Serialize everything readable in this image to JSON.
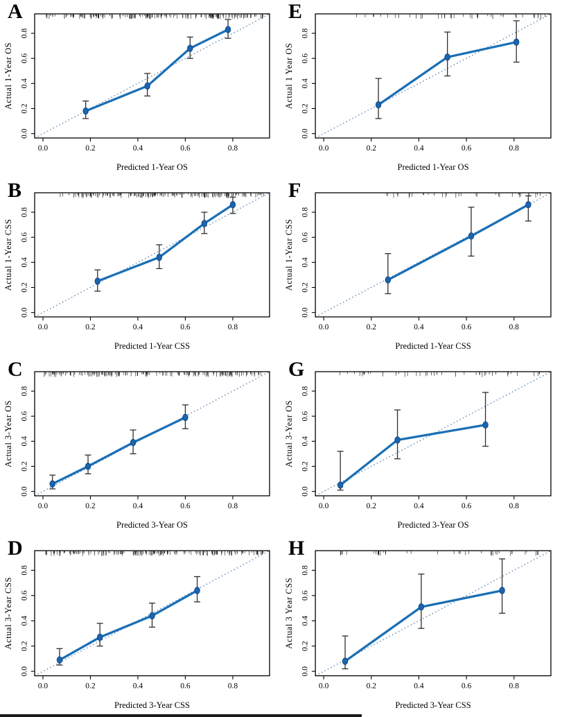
{
  "figure": {
    "description": "Calibration curves of nomograms, panels A-H",
    "panel_letters": [
      "A",
      "B",
      "C",
      "D",
      "E",
      "F",
      "G",
      "H"
    ]
  },
  "style": {
    "line_color": "#1a6fb5",
    "point_fill": "#1d63ad",
    "point_stroke": "#0f4c8c",
    "diagonal_color": "#5b84b8",
    "errorbar_color": "#2f2f2f",
    "axis_color": "#000000",
    "background": "#ffffff"
  },
  "chart_data": [
    {
      "label": "A",
      "type": "line",
      "xlabel": "Predicted 1-Year OS",
      "ylabel": "Actual 1-Year OS",
      "xticks": [
        0.0,
        0.2,
        0.4,
        0.6,
        0.8
      ],
      "yticks": [
        0.0,
        0.2,
        0.4,
        0.6,
        0.8
      ],
      "xlim": [
        -0.035,
        0.955
      ],
      "ylim": [
        -0.035,
        0.955
      ],
      "diagonal": true,
      "grid": false,
      "legend": "none",
      "points": {
        "x": [
          0.18,
          0.44,
          0.62,
          0.78
        ],
        "y": [
          0.18,
          0.38,
          0.68,
          0.83
        ],
        "ci_low": [
          0.12,
          0.3,
          0.6,
          0.76
        ],
        "ci_high": [
          0.26,
          0.48,
          0.77,
          0.91
        ]
      },
      "rug": {
        "span": [
          0.01,
          0.935
        ],
        "count": 175,
        "seed": 11
      }
    },
    {
      "label": "B",
      "type": "line",
      "xlabel": "Predicted 1-Year CSS",
      "ylabel": "Actual 1-Year CSS",
      "xticks": [
        0.0,
        0.2,
        0.4,
        0.6,
        0.8
      ],
      "yticks": [
        0.0,
        0.2,
        0.4,
        0.6,
        0.8
      ],
      "xlim": [
        -0.035,
        0.955
      ],
      "ylim": [
        -0.035,
        0.955
      ],
      "diagonal": true,
      "grid": false,
      "legend": "none",
      "points": {
        "x": [
          0.23,
          0.49,
          0.68,
          0.8
        ],
        "y": [
          0.25,
          0.44,
          0.71,
          0.86
        ],
        "ci_low": [
          0.17,
          0.35,
          0.63,
          0.79
        ],
        "ci_high": [
          0.34,
          0.54,
          0.8,
          0.92
        ]
      },
      "rug": {
        "span": [
          0.07,
          0.935
        ],
        "count": 165,
        "seed": 23
      }
    },
    {
      "label": "C",
      "type": "line",
      "xlabel": "Predicted 3-Year OS",
      "ylabel": "Actual 3-Year OS",
      "xticks": [
        0.0,
        0.2,
        0.4,
        0.6,
        0.8
      ],
      "yticks": [
        0.0,
        0.2,
        0.4,
        0.6,
        0.8
      ],
      "xlim": [
        -0.035,
        0.955
      ],
      "ylim": [
        -0.035,
        0.955
      ],
      "diagonal": true,
      "grid": false,
      "legend": "none",
      "points": {
        "x": [
          0.04,
          0.19,
          0.38,
          0.6
        ],
        "y": [
          0.06,
          0.2,
          0.39,
          0.59
        ],
        "ci_low": [
          0.02,
          0.14,
          0.3,
          0.5
        ],
        "ci_high": [
          0.13,
          0.29,
          0.49,
          0.69
        ]
      },
      "rug": {
        "span": [
          0.005,
          0.92
        ],
        "count": 170,
        "seed": 37
      }
    },
    {
      "label": "D",
      "type": "line",
      "xlabel": "Predicted 3-Year CSS",
      "ylabel": "Actual 3-Year CSS",
      "xticks": [
        0.0,
        0.2,
        0.4,
        0.6,
        0.8
      ],
      "yticks": [
        0.0,
        0.2,
        0.4,
        0.6,
        0.8
      ],
      "xlim": [
        -0.035,
        0.955
      ],
      "ylim": [
        -0.035,
        0.955
      ],
      "diagonal": true,
      "grid": false,
      "legend": "none",
      "points": {
        "x": [
          0.07,
          0.24,
          0.46,
          0.65
        ],
        "y": [
          0.09,
          0.27,
          0.44,
          0.64
        ],
        "ci_low": [
          0.05,
          0.2,
          0.35,
          0.55
        ],
        "ci_high": [
          0.18,
          0.38,
          0.54,
          0.75
        ]
      },
      "rug": {
        "span": [
          0.01,
          0.93
        ],
        "count": 170,
        "seed": 49
      }
    },
    {
      "label": "E",
      "type": "line",
      "xlabel": "Predicted 1-Year OS",
      "ylabel": "Actual 1 Year OS",
      "xticks": [
        0.0,
        0.2,
        0.4,
        0.6,
        0.8
      ],
      "yticks": [
        0.0,
        0.2,
        0.4,
        0.6,
        0.8
      ],
      "xlim": [
        -0.035,
        0.955
      ],
      "ylim": [
        -0.035,
        0.955
      ],
      "diagonal": true,
      "grid": false,
      "legend": "none",
      "points": {
        "x": [
          0.23,
          0.52,
          0.81
        ],
        "y": [
          0.23,
          0.61,
          0.73
        ],
        "ci_low": [
          0.12,
          0.46,
          0.57
        ],
        "ci_high": [
          0.44,
          0.81,
          0.9
        ]
      },
      "rug": {
        "span": [
          0.13,
          0.935
        ],
        "count": 42,
        "seed": 61
      }
    },
    {
      "label": "F",
      "type": "line",
      "xlabel": "Predicted 1-Year CSS",
      "ylabel": "Actual 1-Year CSS",
      "xticks": [
        0.0,
        0.2,
        0.4,
        0.6,
        0.8
      ],
      "yticks": [
        0.0,
        0.2,
        0.4,
        0.6,
        0.8
      ],
      "xlim": [
        -0.035,
        0.955
      ],
      "ylim": [
        -0.035,
        0.955
      ],
      "diagonal": true,
      "grid": false,
      "legend": "none",
      "points": {
        "x": [
          0.27,
          0.62,
          0.86
        ],
        "y": [
          0.26,
          0.61,
          0.86
        ],
        "ci_low": [
          0.15,
          0.45,
          0.73
        ],
        "ci_high": [
          0.47,
          0.84,
          0.93
        ]
      },
      "rug": {
        "span": [
          0.2,
          0.92
        ],
        "count": 36,
        "seed": 73
      }
    },
    {
      "label": "G",
      "type": "line",
      "xlabel": "Predicted 3-Year OS",
      "ylabel": "Actual 3-Year OS",
      "xticks": [
        0.0,
        0.2,
        0.4,
        0.6,
        0.8
      ],
      "yticks": [
        0.0,
        0.2,
        0.4,
        0.6,
        0.8
      ],
      "xlim": [
        -0.035,
        0.955
      ],
      "ylim": [
        -0.035,
        0.955
      ],
      "diagonal": true,
      "grid": false,
      "legend": "none",
      "points": {
        "x": [
          0.07,
          0.31,
          0.68
        ],
        "y": [
          0.05,
          0.41,
          0.53
        ],
        "ci_low": [
          0.01,
          0.26,
          0.36
        ],
        "ci_high": [
          0.32,
          0.65,
          0.79
        ]
      },
      "rug": {
        "span": [
          0.04,
          0.92
        ],
        "count": 46,
        "seed": 85
      }
    },
    {
      "label": "H",
      "type": "line",
      "xlabel": "Predicted 3-Year CSS",
      "ylabel": "Actual 3 Year CSS",
      "xticks": [
        0.0,
        0.2,
        0.4,
        0.6,
        0.8
      ],
      "yticks": [
        0.0,
        0.2,
        0.4,
        0.6,
        0.8
      ],
      "xlim": [
        -0.035,
        0.955
      ],
      "ylim": [
        -0.035,
        0.955
      ],
      "diagonal": true,
      "grid": false,
      "legend": "none",
      "points": {
        "x": [
          0.09,
          0.41,
          0.75
        ],
        "y": [
          0.08,
          0.51,
          0.64
        ],
        "ci_low": [
          0.02,
          0.34,
          0.46
        ],
        "ci_high": [
          0.28,
          0.77,
          0.89
        ]
      },
      "rug": {
        "span": [
          0.06,
          0.92
        ],
        "count": 40,
        "seed": 97
      }
    }
  ]
}
